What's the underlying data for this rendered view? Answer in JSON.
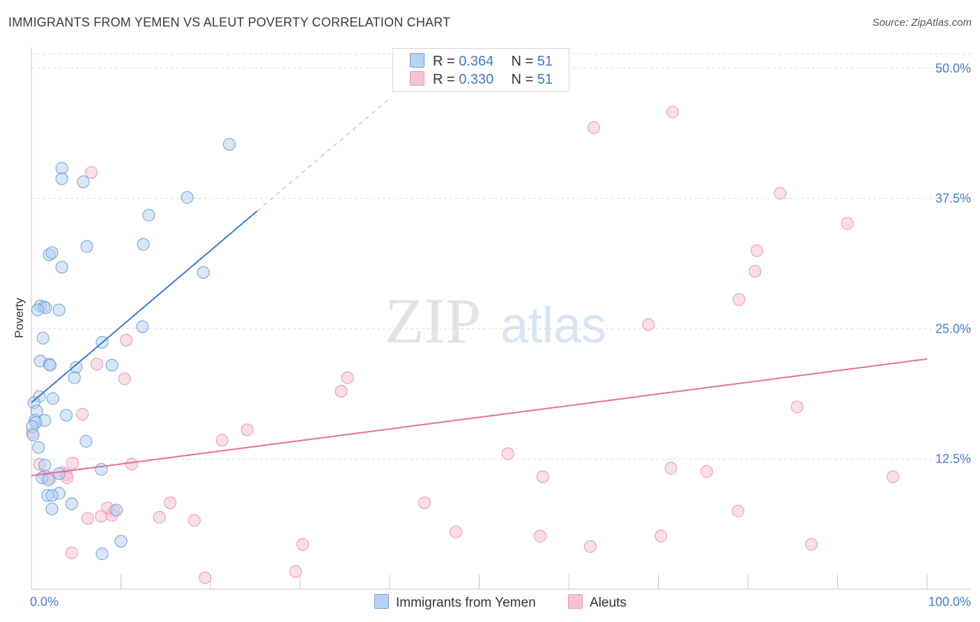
{
  "title": "IMMIGRANTS FROM YEMEN VS ALEUT POVERTY CORRELATION CHART",
  "source": "Source: ZipAtlas.com",
  "watermark": {
    "zip": "ZIP",
    "atlas": "atlas"
  },
  "legend": {
    "r_label": "R =",
    "n_label": "N =",
    "series": [
      {
        "name": "Immigrants from Yemen",
        "r": "0.364",
        "n": "51"
      },
      {
        "name": "Aleuts",
        "r": "0.330",
        "n": "51"
      }
    ]
  },
  "colors": {
    "blue_fill": "#b8d3f2",
    "blue_stroke": "#6d9fdc",
    "blue_line": "#3a7bd5",
    "pink_fill": "#f7c3d3",
    "pink_stroke": "#e897b0",
    "pink_line": "#e0709a",
    "tick_text": "#4a7cc7",
    "grid": "#dcdcdc"
  },
  "chart_data": {
    "type": "scatter",
    "title": "IMMIGRANTS FROM YEMEN VS ALEUT POVERTY CORRELATION CHART",
    "xlabel": "",
    "ylabel": "Poverty",
    "xlim": [
      0,
      100
    ],
    "ylim": [
      0,
      52
    ],
    "x_ticks": [
      {
        "value": 0,
        "label": "0.0%"
      },
      {
        "value": 100,
        "label": "100.0%"
      }
    ],
    "y_ticks": [
      {
        "value": 12.5,
        "label": "12.5%"
      },
      {
        "value": 25.0,
        "label": "25.0%"
      },
      {
        "value": 37.5,
        "label": "37.5%"
      },
      {
        "value": 50.0,
        "label": "50.0%"
      }
    ],
    "series": [
      {
        "name": "Immigrants from Yemen",
        "points": [
          [
            22.1,
            42.7
          ],
          [
            3.4,
            40.4
          ],
          [
            3.4,
            39.4
          ],
          [
            5.8,
            39.1
          ],
          [
            17.4,
            37.6
          ],
          [
            13.1,
            35.9
          ],
          [
            6.2,
            32.9
          ],
          [
            12.5,
            33.1
          ],
          [
            2.0,
            32.1
          ],
          [
            2.3,
            32.3
          ],
          [
            3.4,
            30.9
          ],
          [
            19.2,
            30.4
          ],
          [
            1.0,
            27.2
          ],
          [
            1.4,
            27.1
          ],
          [
            1.6,
            27.0
          ],
          [
            0.7,
            26.8
          ],
          [
            3.1,
            26.8
          ],
          [
            12.4,
            25.2
          ],
          [
            1.3,
            24.1
          ],
          [
            7.9,
            23.7
          ],
          [
            1.0,
            21.9
          ],
          [
            2.0,
            21.6
          ],
          [
            2.1,
            21.5
          ],
          [
            5.0,
            21.3
          ],
          [
            9.0,
            21.5
          ],
          [
            4.8,
            20.3
          ],
          [
            0.9,
            18.5
          ],
          [
            2.4,
            18.3
          ],
          [
            0.3,
            17.9
          ],
          [
            0.6,
            17.1
          ],
          [
            3.9,
            16.7
          ],
          [
            0.4,
            16.2
          ],
          [
            1.5,
            16.2
          ],
          [
            0.5,
            16.0
          ],
          [
            0.1,
            15.6
          ],
          [
            0.2,
            14.8
          ],
          [
            6.1,
            14.2
          ],
          [
            0.8,
            13.6
          ],
          [
            1.5,
            11.9
          ],
          [
            7.8,
            11.5
          ],
          [
            3.1,
            11.1
          ],
          [
            1.2,
            10.7
          ],
          [
            1.9,
            10.5
          ],
          [
            3.1,
            9.2
          ],
          [
            1.8,
            9.0
          ],
          [
            2.3,
            9.0
          ],
          [
            4.5,
            8.2
          ],
          [
            2.3,
            7.7
          ],
          [
            9.5,
            7.6
          ],
          [
            10.0,
            4.6
          ],
          [
            7.9,
            3.4
          ]
        ]
      },
      {
        "name": "Aleuts",
        "points": [
          [
            71.6,
            45.8
          ],
          [
            62.8,
            44.3
          ],
          [
            6.7,
            40.0
          ],
          [
            83.6,
            38.0
          ],
          [
            91.1,
            35.1
          ],
          [
            81.0,
            32.5
          ],
          [
            80.8,
            30.5
          ],
          [
            79.0,
            27.8
          ],
          [
            68.9,
            25.4
          ],
          [
            10.6,
            23.9
          ],
          [
            7.3,
            21.6
          ],
          [
            10.4,
            20.2
          ],
          [
            35.3,
            20.3
          ],
          [
            34.6,
            19.0
          ],
          [
            85.5,
            17.5
          ],
          [
            5.7,
            16.8
          ],
          [
            24.1,
            15.3
          ],
          [
            21.3,
            14.3
          ],
          [
            53.2,
            13.0
          ],
          [
            0.9,
            12.0
          ],
          [
            4.6,
            12.1
          ],
          [
            11.2,
            12.0
          ],
          [
            71.4,
            11.6
          ],
          [
            75.4,
            11.3
          ],
          [
            96.2,
            10.8
          ],
          [
            57.1,
            10.8
          ],
          [
            1.5,
            10.9
          ],
          [
            2.1,
            10.7
          ],
          [
            3.5,
            11.2
          ],
          [
            3.9,
            11.0
          ],
          [
            4.0,
            10.7
          ],
          [
            15.5,
            8.3
          ],
          [
            43.9,
            8.3
          ],
          [
            78.9,
            7.5
          ],
          [
            9.2,
            7.5
          ],
          [
            7.8,
            7.0
          ],
          [
            9.0,
            7.1
          ],
          [
            14.3,
            6.9
          ],
          [
            6.3,
            6.8
          ],
          [
            18.2,
            6.6
          ],
          [
            47.4,
            5.5
          ],
          [
            56.8,
            5.1
          ],
          [
            70.3,
            5.1
          ],
          [
            30.3,
            4.3
          ],
          [
            62.4,
            4.1
          ],
          [
            87.1,
            4.3
          ],
          [
            4.5,
            3.5
          ],
          [
            29.5,
            1.7
          ],
          [
            19.4,
            1.1
          ],
          [
            0.1,
            15.0
          ],
          [
            8.5,
            7.8
          ]
        ]
      }
    ],
    "trendlines": [
      {
        "series": "Immigrants from Yemen",
        "solid": [
          [
            0,
            17.9
          ],
          [
            25.2,
            36.3
          ]
        ],
        "dashed": [
          [
            25.2,
            36.3
          ],
          [
            40,
            47.1
          ]
        ]
      },
      {
        "series": "Aleuts",
        "solid": [
          [
            0,
            10.9
          ],
          [
            100,
            22.1
          ]
        ]
      }
    ]
  }
}
